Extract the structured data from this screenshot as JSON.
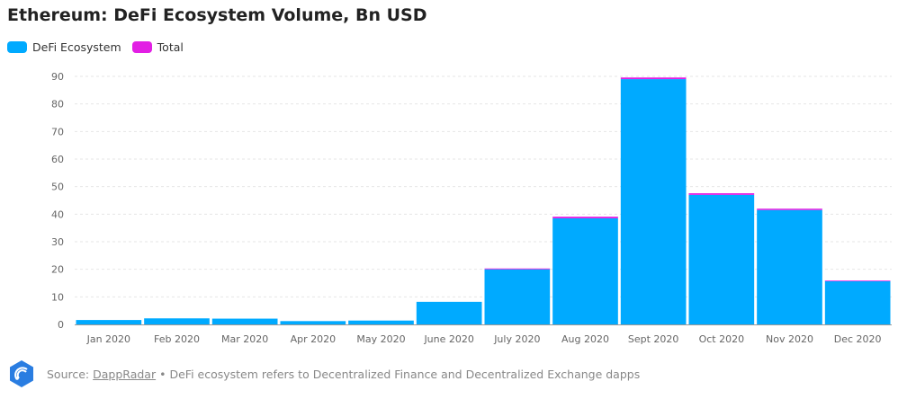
{
  "title": "Ethereum: DeFi Ecosystem Volume, Bn USD",
  "colors": {
    "defi": "#00aaff",
    "total": "#e21fe4",
    "grid": "#e6e6e6",
    "tick": "#666666"
  },
  "legend": [
    {
      "label": "DeFi Ecosystem",
      "color": "#00aaff"
    },
    {
      "label": "Total",
      "color": "#e21fe4"
    }
  ],
  "footer": {
    "source_prefix": "Source:",
    "source_link": "DappRadar",
    "separator": "•",
    "note": "DeFi ecosystem refers to Decentralized Finance and Decentralized Exchange dapps",
    "logo_icon": "dappradar-logo-icon"
  },
  "chart_data": {
    "type": "bar",
    "stacked": true,
    "title": "Ethereum: DeFi Ecosystem Volume, Bn USD",
    "xlabel": "",
    "ylabel": "",
    "categories": [
      "Jan 2020",
      "Feb 2020",
      "Mar 2020",
      "Apr 2020",
      "May 2020",
      "June 2020",
      "July 2020",
      "Aug 2020",
      "Sept 2020",
      "Oct 2020",
      "Nov 2020",
      "Dec 2020"
    ],
    "series": [
      {
        "name": "DeFi Ecosystem",
        "values": [
          1.6,
          2.2,
          2.1,
          1.2,
          1.4,
          8.2,
          20.0,
          38.5,
          89.0,
          47.0,
          41.5,
          15.8
        ]
      },
      {
        "name": "Total",
        "values": [
          0,
          0,
          0,
          0,
          0,
          0,
          0.3,
          0.6,
          0.6,
          0.6,
          0.5,
          0.1
        ]
      }
    ],
    "ylim": [
      0,
      90
    ],
    "yticks": [
      0,
      10,
      20,
      30,
      40,
      50,
      60,
      70,
      80,
      90
    ],
    "grid": true,
    "legend_position": "top-left"
  }
}
